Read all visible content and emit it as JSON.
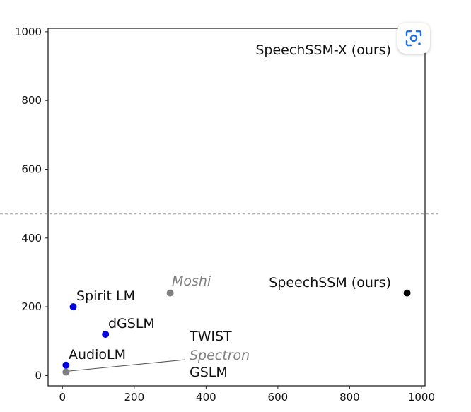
{
  "chart_data": {
    "type": "scatter",
    "title": "",
    "xlabel": "",
    "ylabel": "",
    "xlim": [
      -40,
      1010
    ],
    "ylim": [
      -30,
      1010
    ],
    "xticks": [
      0,
      200,
      400,
      600,
      800,
      1000
    ],
    "yticks": [
      0,
      200,
      400,
      600,
      800,
      1000
    ],
    "grid": false,
    "reference_line": {
      "y": 470,
      "style": "dashed"
    },
    "points": [
      {
        "label": "SpeechSSM-X (ours)",
        "x": 960,
        "y": 960,
        "color": "#000000",
        "label_color": "#111111",
        "italic": false
      },
      {
        "label": "SpeechSSM (ours)",
        "x": 960,
        "y": 240,
        "color": "#000000",
        "label_color": "#111111",
        "italic": false
      },
      {
        "label": "Moshi",
        "x": 300,
        "y": 240,
        "color": "#808080",
        "label_color": "#808080",
        "italic": true
      },
      {
        "label": "Spirit LM",
        "x": 30,
        "y": 200,
        "color": "#0000e0",
        "label_color": "#111111",
        "italic": false
      },
      {
        "label": "dGSLM",
        "x": 120,
        "y": 120,
        "color": "#0000e0",
        "label_color": "#111111",
        "italic": false
      },
      {
        "label": "AudioLM",
        "x": 10,
        "y": 30,
        "color": "#0000e0",
        "label_color": "#111111",
        "italic": false
      },
      {
        "label": "TWIST",
        "x": 15,
        "y": 25,
        "color": "#0000e0",
        "label_color": "#111111",
        "italic": false
      },
      {
        "label": "Spectron",
        "x": 10,
        "y": 10,
        "color": "#808080",
        "label_color": "#808080",
        "italic": true
      },
      {
        "label": "GSLM",
        "x": 12,
        "y": 18,
        "color": "#0000e0",
        "label_color": "#111111",
        "italic": false
      }
    ]
  },
  "ui": {
    "lens_icon": "google-lens-icon"
  }
}
